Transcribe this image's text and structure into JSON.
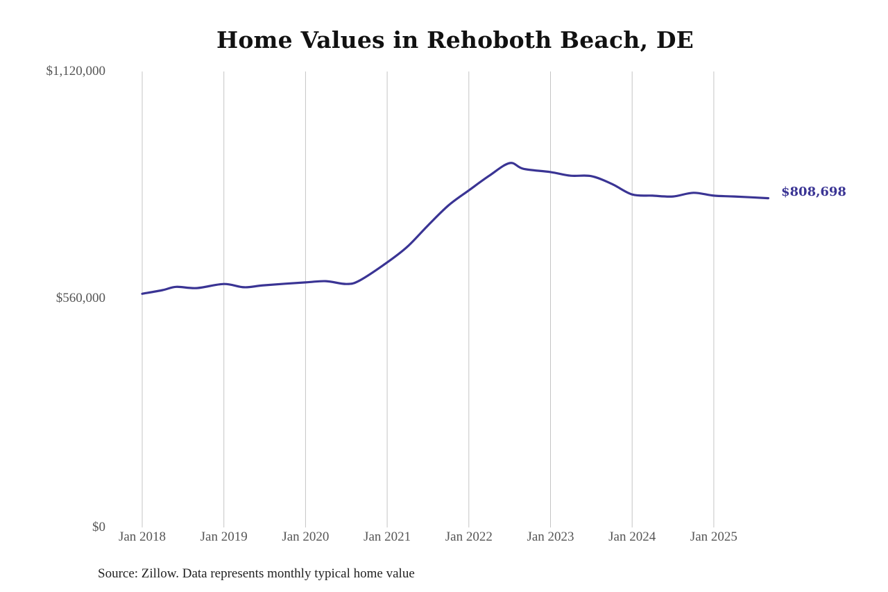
{
  "chart_data": {
    "type": "line",
    "title": "Home Values in Rehoboth Beach, DE",
    "xlabel": "",
    "ylabel": "",
    "ylim": [
      0,
      1120000
    ],
    "y_ticks": [
      "$0",
      "$560,000",
      "$1,120,000"
    ],
    "x_ticks": [
      "Jan 2018",
      "Jan 2019",
      "Jan 2020",
      "Jan 2021",
      "Jan 2022",
      "Jan 2023",
      "Jan 2024",
      "Jan 2025"
    ],
    "grid": "vertical",
    "legend": "none",
    "line_color": "#3a3494",
    "end_label": "$808,698",
    "source": "Source: Zillow. Data represents monthly typical home value",
    "series": [
      {
        "name": "Typical home value",
        "x": [
          "2018-01",
          "2018-04",
          "2018-06",
          "2018-09",
          "2019-01",
          "2019-04",
          "2019-07",
          "2020-01",
          "2020-04",
          "2020-07",
          "2020-09",
          "2021-01",
          "2021-04",
          "2021-07",
          "2021-10",
          "2022-01",
          "2022-04",
          "2022-07",
          "2022-09",
          "2023-01",
          "2023-04",
          "2023-07",
          "2023-10",
          "2024-01",
          "2024-04",
          "2024-07",
          "2024-10",
          "2025-01",
          "2025-04",
          "2025-09"
        ],
        "values": [
          574000,
          583000,
          591000,
          588000,
          598000,
          590000,
          595000,
          602000,
          605000,
          598000,
          607000,
          651000,
          690000,
          742000,
          791000,
          828000,
          864000,
          895000,
          881000,
          873000,
          864000,
          863000,
          844000,
          818000,
          815000,
          813000,
          822000,
          815000,
          813000,
          808698
        ]
      }
    ]
  },
  "labels": {
    "title": "Home Values in Rehoboth Beach, DE",
    "y0": "$0",
    "y1": "$560,000",
    "y2": "$1,120,000",
    "x": [
      "Jan 2018",
      "Jan 2019",
      "Jan 2020",
      "Jan 2021",
      "Jan 2022",
      "Jan 2023",
      "Jan 2024",
      "Jan 2025"
    ],
    "end_value": "$808,698",
    "source": "Source: Zillow. Data represents monthly typical home value"
  }
}
